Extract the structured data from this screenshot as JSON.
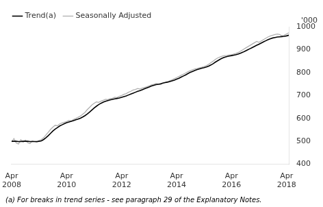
{
  "chart_data": {
    "type": "line",
    "ylabel": "'000",
    "footnote": "(a) For breaks in trend series - see paragraph 29 of the Explanatory Notes.",
    "categories": [
      "Apr\n2008",
      null,
      null,
      null,
      null,
      null,
      null,
      null,
      null,
      null,
      null,
      null,
      null,
      null,
      null,
      null,
      null,
      null,
      null,
      null,
      null,
      null,
      null,
      null,
      "Apr\n2010",
      null,
      null,
      null,
      null,
      null,
      null,
      null,
      null,
      null,
      null,
      null,
      null,
      null,
      null,
      null,
      null,
      null,
      null,
      null,
      null,
      null,
      null,
      null,
      "Apr\n2012",
      null,
      null,
      null,
      null,
      null,
      null,
      null,
      null,
      null,
      null,
      null,
      null,
      null,
      null,
      null,
      null,
      null,
      null,
      null,
      null,
      null,
      null,
      null,
      "Apr\n2014",
      null,
      null,
      null,
      null,
      null,
      null,
      null,
      null,
      null,
      null,
      null,
      null,
      null,
      null,
      null,
      null,
      null,
      null,
      null,
      null,
      null,
      null,
      null,
      "Apr\n2016",
      null,
      null,
      null,
      null,
      null,
      null,
      null,
      null,
      null,
      null,
      null,
      null,
      null,
      null,
      null,
      null,
      null,
      null,
      null,
      null,
      null,
      null,
      null,
      "Apr\n2018",
      null
    ],
    "series": [
      {
        "name": "Trend(a)",
        "color": "#000000",
        "values": [
          500,
          500,
          500,
          499,
          499,
          500,
          500,
          500,
          499,
          499,
          499,
          499,
          500,
          502,
          508,
          516,
          525,
          535,
          545,
          553,
          560,
          567,
          572,
          577,
          581,
          584,
          587,
          590,
          594,
          597,
          601,
          606,
          612,
          619,
          627,
          636,
          645,
          653,
          660,
          666,
          671,
          675,
          678,
          681,
          683,
          685,
          687,
          689,
          692,
          695,
          698,
          702,
          706,
          710,
          714,
          718,
          721,
          725,
          729,
          733,
          737,
          741,
          744,
          747,
          749,
          751,
          754,
          756,
          758,
          761,
          764,
          767,
          771,
          775,
          780,
          785,
          790,
          796,
          801,
          805,
          809,
          813,
          816,
          819,
          821,
          824,
          828,
          833,
          839,
          846,
          852,
          858,
          863,
          867,
          870,
          872,
          874,
          876,
          878,
          881,
          885,
          889,
          894,
          899,
          904,
          909,
          914,
          919,
          924,
          929,
          934,
          939,
          944,
          948,
          951,
          953,
          955,
          956,
          957,
          958,
          960,
          963
        ]
      },
      {
        "name": "Seasonally Adjusted",
        "color": "#b0b0b0",
        "values": [
          497,
          512,
          493,
          488,
          507,
          496,
          505,
          494,
          490,
          502,
          499,
          496,
          503,
          508,
          516,
          528,
          540,
          552,
          562,
          570,
          568,
          576,
          580,
          583,
          586,
          591,
          588,
          595,
          600,
          605,
          610,
          618,
          626,
          638,
          648,
          658,
          666,
          672,
          670,
          675,
          679,
          683,
          682,
          686,
          688,
          692,
          691,
          696,
          700,
          705,
          708,
          714,
          718,
          724,
          726,
          730,
          728,
          732,
          735,
          738,
          742,
          746,
          748,
          753,
          750,
          747,
          754,
          757,
          760,
          764,
          768,
          773,
          778,
          783,
          788,
          793,
          798,
          804,
          808,
          812,
          816,
          818,
          821,
          823,
          826,
          830,
          836,
          843,
          850,
          858,
          864,
          868,
          872,
          874,
          875,
          877,
          878,
          881,
          884,
          888,
          894,
          900,
          906,
          912,
          918,
          924,
          930,
          936,
          932,
          938,
          944,
          950,
          956,
          960,
          963,
          966,
          968,
          966,
          960,
          963,
          968,
          974
        ]
      }
    ],
    "ylim": [
      400,
      1000
    ],
    "yticks": [
      400,
      500,
      600,
      700,
      800,
      900,
      1000
    ],
    "grid": false,
    "legend": "upper left"
  }
}
